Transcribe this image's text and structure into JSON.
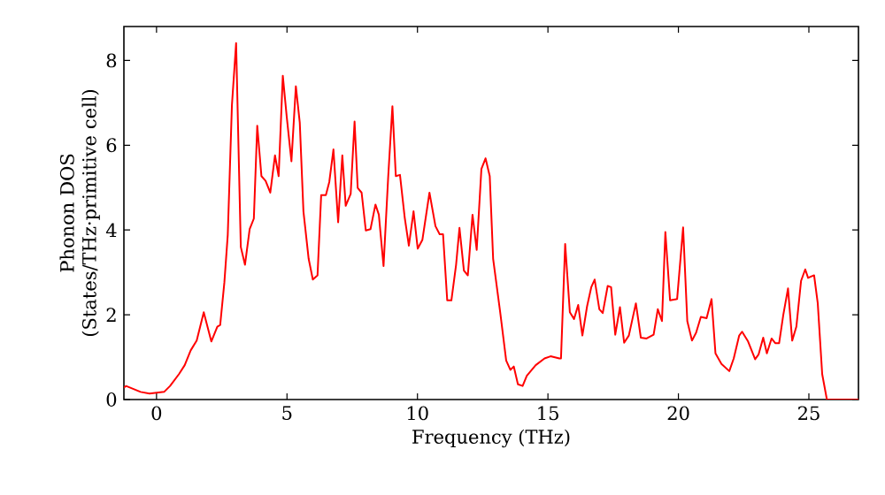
{
  "chart_data": {
    "type": "line",
    "xlabel": "Frequency (THz)",
    "ylabel": "Phonon DOS (States/THz·primitive cell)",
    "color": "#ff0000",
    "line_style": "solid",
    "xlim": [
      -1.25,
      26.9
    ],
    "ylim": [
      0,
      8.8
    ],
    "xticks": [
      0,
      5,
      10,
      15,
      20,
      25
    ],
    "yticks": [
      0,
      2,
      4,
      6,
      8
    ],
    "grid": false,
    "x": [
      -1.25,
      -1.17,
      -0.61,
      -0.27,
      0.29,
      0.52,
      0.86,
      1.08,
      1.31,
      1.54,
      1.81,
      2.1,
      2.33,
      2.44,
      2.6,
      2.73,
      2.89,
      3.05,
      3.23,
      3.39,
      3.57,
      3.73,
      3.86,
      4.02,
      4.18,
      4.36,
      4.54,
      4.68,
      4.84,
      4.99,
      5.17,
      5.34,
      5.49,
      5.63,
      5.83,
      5.99,
      6.17,
      6.31,
      6.49,
      6.62,
      6.78,
      6.96,
      7.12,
      7.25,
      7.44,
      7.59,
      7.71,
      7.86,
      8.02,
      8.2,
      8.39,
      8.52,
      8.7,
      8.88,
      9.04,
      9.17,
      9.33,
      9.51,
      9.67,
      9.85,
      10.01,
      10.19,
      10.46,
      10.69,
      10.85,
      10.98,
      11.14,
      11.3,
      11.48,
      11.61,
      11.78,
      11.93,
      12.11,
      12.27,
      12.45,
      12.61,
      12.77,
      12.9,
      13.17,
      13.4,
      13.56,
      13.69,
      13.85,
      14.03,
      14.19,
      14.53,
      14.87,
      15.1,
      15.44,
      15.5,
      15.66,
      15.84,
      16.0,
      16.16,
      16.32,
      16.5,
      16.66,
      16.79,
      16.97,
      17.1,
      17.29,
      17.42,
      17.58,
      17.76,
      17.92,
      18.1,
      18.37,
      18.56,
      18.78,
      19.05,
      19.21,
      19.37,
      19.5,
      19.68,
      19.95,
      20.18,
      20.34,
      20.52,
      20.68,
      20.86,
      21.08,
      21.27,
      21.42,
      21.65,
      21.95,
      22.12,
      22.33,
      22.44,
      22.67,
      22.94,
      23.07,
      23.25,
      23.39,
      23.57,
      23.71,
      23.86,
      24.02,
      24.2,
      24.36,
      24.52,
      24.7,
      24.86,
      24.97,
      25.08,
      25.2,
      25.34,
      25.51,
      25.69,
      26.9
    ],
    "values": [
      0.28,
      0.32,
      0.18,
      0.14,
      0.18,
      0.32,
      0.6,
      0.81,
      1.16,
      1.39,
      2.06,
      1.37,
      1.72,
      1.76,
      2.76,
      3.88,
      6.95,
      8.41,
      3.6,
      3.18,
      4.02,
      4.27,
      6.46,
      5.27,
      5.16,
      4.88,
      5.76,
      5.27,
      7.64,
      6.67,
      5.62,
      7.39,
      6.53,
      4.44,
      3.32,
      2.83,
      2.93,
      4.82,
      4.82,
      5.13,
      5.9,
      4.18,
      5.76,
      4.57,
      4.85,
      6.56,
      4.99,
      4.88,
      3.99,
      4.02,
      4.6,
      4.36,
      3.15,
      5.27,
      6.92,
      5.27,
      5.3,
      4.3,
      3.63,
      4.44,
      3.56,
      3.77,
      4.88,
      4.09,
      3.9,
      3.9,
      2.34,
      2.34,
      3.18,
      4.05,
      3.04,
      2.93,
      4.36,
      3.53,
      5.44,
      5.69,
      5.27,
      3.32,
      2.06,
      0.92,
      0.7,
      0.78,
      0.36,
      0.32,
      0.56,
      0.81,
      0.97,
      1.02,
      0.97,
      0.97,
      3.67,
      2.06,
      1.9,
      2.23,
      1.51,
      2.2,
      2.65,
      2.83,
      2.13,
      2.04,
      2.68,
      2.65,
      1.53,
      2.18,
      1.34,
      1.51,
      2.27,
      1.46,
      1.44,
      1.53,
      2.13,
      1.85,
      3.95,
      2.34,
      2.37,
      4.06,
      1.85,
      1.39,
      1.58,
      1.95,
      1.92,
      2.37,
      1.09,
      0.84,
      0.67,
      0.97,
      1.51,
      1.6,
      1.37,
      0.95,
      1.06,
      1.46,
      1.09,
      1.44,
      1.33,
      1.33,
      2.0,
      2.62,
      1.39,
      1.72,
      2.8,
      3.07,
      2.87,
      2.9,
      2.93,
      2.27,
      0.6,
      0,
      0
    ]
  }
}
